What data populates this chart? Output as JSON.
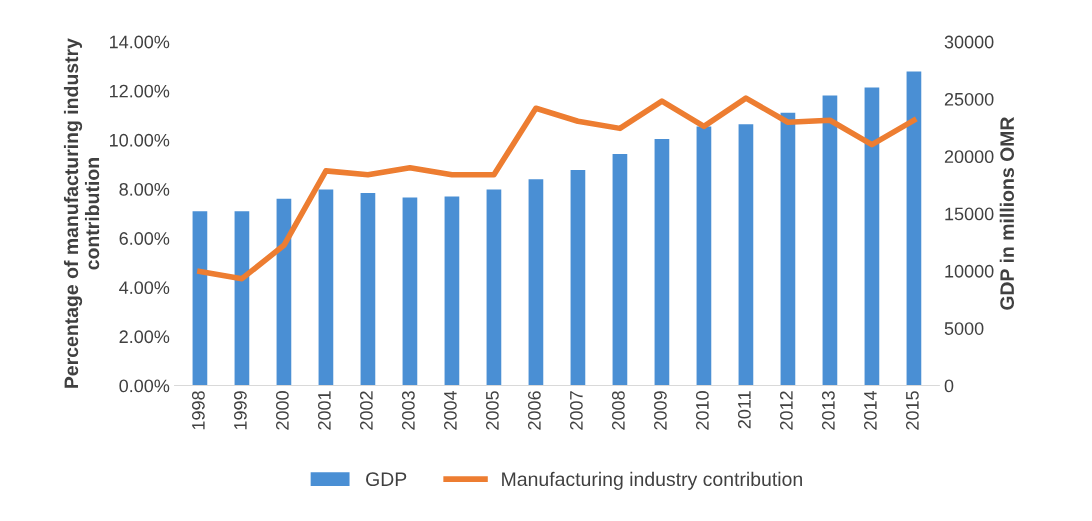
{
  "chart_data": {
    "type": "bar",
    "ylabel": "Percentage of manufacturing industry contribution",
    "y2label": "GDP in millions OMR",
    "categories": [
      "1998",
      "1999",
      "2000",
      "2001",
      "2002",
      "2003",
      "2004",
      "2005",
      "2006",
      "2007",
      "2008",
      "2009",
      "2010",
      "2011",
      "2012",
      "2013",
      "2014",
      "2015"
    ],
    "series": [
      {
        "name": "GDP",
        "axis": "y2",
        "color": "#4a8fd4",
        "values": [
          15200,
          15200,
          16300,
          17100,
          16800,
          16400,
          16500,
          17100,
          18000,
          18800,
          20200,
          21500,
          22600,
          22800,
          23800,
          25300,
          26000,
          27400
        ]
      },
      {
        "name": "Manufacturing industry contribution",
        "type": "line",
        "axis": "y",
        "color": "#ed7d31",
        "values": [
          4.64,
          4.35,
          5.71,
          8.74,
          8.58,
          8.87,
          8.58,
          8.58,
          11.29,
          10.76,
          10.47,
          11.58,
          10.55,
          11.7,
          10.72,
          10.8,
          9.81,
          10.8
        ]
      }
    ],
    "ylim": [
      0,
      14
    ],
    "yticks": [
      {
        "value": 0,
        "label": "0.00%"
      },
      {
        "value": 2,
        "label": "2.00%"
      },
      {
        "value": 4,
        "label": "4.00%"
      },
      {
        "value": 6,
        "label": "6.00%"
      },
      {
        "value": 8,
        "label": "8.00%"
      },
      {
        "value": 10,
        "label": "10.00%"
      },
      {
        "value": 12,
        "label": "12.00%"
      },
      {
        "value": 14,
        "label": "14.00%"
      }
    ],
    "y2lim": [
      0,
      30000
    ],
    "y2ticks": [
      0,
      5000,
      10000,
      15000,
      20000,
      25000,
      30000
    ],
    "grid": false,
    "legend": "bottom",
    "marker": "none",
    "line_style": "solid"
  }
}
